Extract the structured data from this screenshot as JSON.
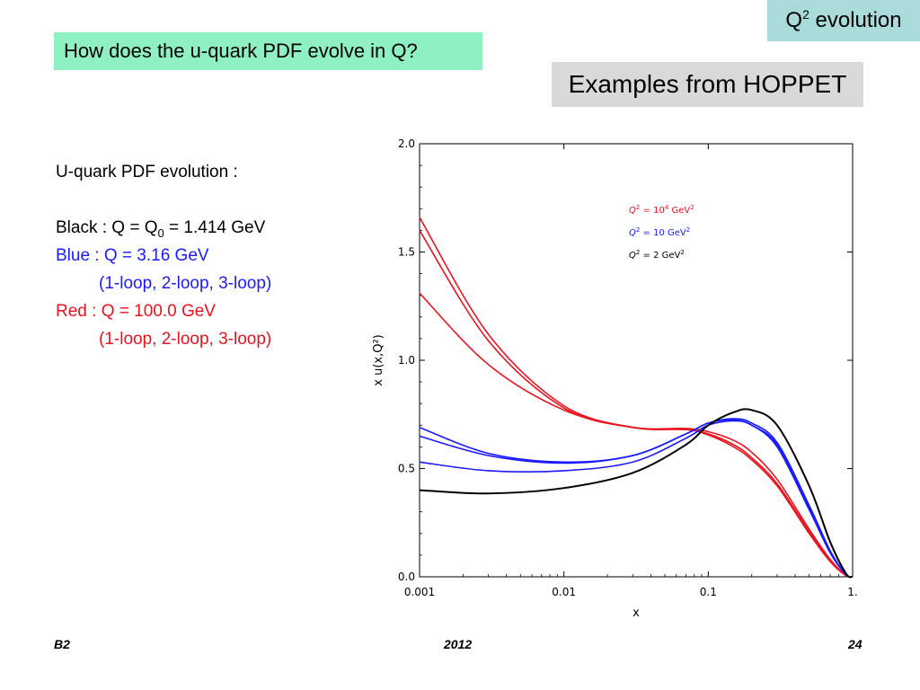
{
  "header": {
    "tag_base": "Q",
    "tag_sup": "2",
    "tag_rest": " evolution",
    "question": "How does the u-quark PDF evolve in Q?",
    "examples": "Examples from HOPPET"
  },
  "notes": {
    "title": "U-quark PDF evolution :",
    "black_prefix": "Black : Q = Q",
    "black_sub": "0",
    "black_suffix": " = 1.414 GeV",
    "blue": "Blue : Q = 3.16 GeV",
    "blue_loops": "(1-loop, 2-loop, 3-loop)",
    "red": "Red : Q = 100.0 GeV",
    "red_loops": "(1-loop, 2-loop, 3-loop)"
  },
  "footer": {
    "left": "B2",
    "center": "2012",
    "right": "24"
  },
  "colors": {
    "tag_bg": "#a9dbdb",
    "question_bg": "#8ff0c2",
    "examples_bg": "#d9d9d9",
    "blue": "#1a1aff",
    "red": "#e8141e",
    "black": "#000000"
  },
  "chart_data": {
    "type": "line",
    "title": "",
    "xlabel": "x",
    "ylabel": "x u(x,Q²)",
    "xscale": "log",
    "xlim": [
      0.001,
      1.0
    ],
    "ylim": [
      0.0,
      2.0
    ],
    "x_ticks": [
      {
        "value": 0.001,
        "label": "0.001"
      },
      {
        "value": 0.01,
        "label": "0.01"
      },
      {
        "value": 0.1,
        "label": "0.1"
      },
      {
        "value": 1.0,
        "label": "1."
      }
    ],
    "y_ticks": [
      {
        "value": 0.0,
        "label": "0.0"
      },
      {
        "value": 0.5,
        "label": "0.5"
      },
      {
        "value": 1.0,
        "label": "1.0"
      },
      {
        "value": 1.5,
        "label": "1.5"
      },
      {
        "value": 2.0,
        "label": "2.0"
      }
    ],
    "legend": {
      "placement": "top-right",
      "entries": [
        {
          "base": "Q",
          "sup": "2",
          "mid": " = 10",
          "sup2": "4",
          "unit": " GeV",
          "sup3": "2",
          "color": "#e8141e"
        },
        {
          "base": "Q",
          "sup": "2",
          "mid": " = 10 GeV",
          "sup2": "2",
          "unit": "",
          "sup3": "",
          "color": "#1a1aff"
        },
        {
          "base": "Q",
          "sup": "2",
          "mid": " = 2 GeV",
          "sup2": "2",
          "unit": "",
          "sup3": "",
          "color": "#000000"
        }
      ]
    },
    "series": [
      {
        "color": "#e8141e",
        "x": [
          0.001,
          0.003,
          0.01,
          0.03,
          0.07,
          0.1,
          0.15,
          0.2,
          0.3,
          0.5,
          0.7,
          0.9,
          1.0
        ],
        "y": [
          1.66,
          1.12,
          0.79,
          0.69,
          0.68,
          0.655,
          0.6,
          0.54,
          0.42,
          0.2,
          0.07,
          0.005,
          0.0
        ]
      },
      {
        "color": "#e8141e",
        "x": [
          0.001,
          0.003,
          0.01,
          0.03,
          0.07,
          0.1,
          0.15,
          0.2,
          0.3,
          0.5,
          0.7,
          0.9,
          1.0
        ],
        "y": [
          1.6,
          1.09,
          0.78,
          0.69,
          0.68,
          0.66,
          0.61,
          0.55,
          0.43,
          0.21,
          0.075,
          0.006,
          0.0
        ]
      },
      {
        "color": "#e8141e",
        "x": [
          0.001,
          0.003,
          0.01,
          0.03,
          0.07,
          0.1,
          0.15,
          0.2,
          0.3,
          0.5,
          0.7,
          0.9,
          1.0
        ],
        "y": [
          1.31,
          0.98,
          0.77,
          0.69,
          0.685,
          0.67,
          0.63,
          0.575,
          0.45,
          0.22,
          0.08,
          0.007,
          0.0
        ]
      },
      {
        "color": "#1a1aff",
        "x": [
          0.001,
          0.003,
          0.01,
          0.03,
          0.07,
          0.1,
          0.15,
          0.2,
          0.3,
          0.5,
          0.7,
          0.9,
          1.0
        ],
        "y": [
          0.69,
          0.57,
          0.53,
          0.56,
          0.66,
          0.71,
          0.73,
          0.71,
          0.62,
          0.33,
          0.12,
          0.01,
          0.0
        ]
      },
      {
        "color": "#1a1aff",
        "x": [
          0.001,
          0.003,
          0.01,
          0.03,
          0.07,
          0.1,
          0.15,
          0.2,
          0.3,
          0.5,
          0.7,
          0.9,
          1.0
        ],
        "y": [
          0.65,
          0.56,
          0.525,
          0.56,
          0.66,
          0.71,
          0.725,
          0.7,
          0.61,
          0.32,
          0.115,
          0.01,
          0.0
        ]
      },
      {
        "color": "#1a1aff",
        "x": [
          0.001,
          0.003,
          0.01,
          0.03,
          0.07,
          0.1,
          0.15,
          0.2,
          0.3,
          0.5,
          0.7,
          0.9,
          1.0
        ],
        "y": [
          0.53,
          0.49,
          0.49,
          0.53,
          0.64,
          0.7,
          0.72,
          0.7,
          0.6,
          0.31,
          0.11,
          0.01,
          0.0
        ]
      },
      {
        "color": "#000000",
        "x": [
          0.001,
          0.003,
          0.01,
          0.03,
          0.07,
          0.1,
          0.15,
          0.2,
          0.3,
          0.5,
          0.7,
          0.9,
          1.0
        ],
        "y": [
          0.4,
          0.385,
          0.41,
          0.48,
          0.61,
          0.7,
          0.76,
          0.77,
          0.7,
          0.42,
          0.16,
          0.015,
          0.0
        ]
      }
    ]
  }
}
